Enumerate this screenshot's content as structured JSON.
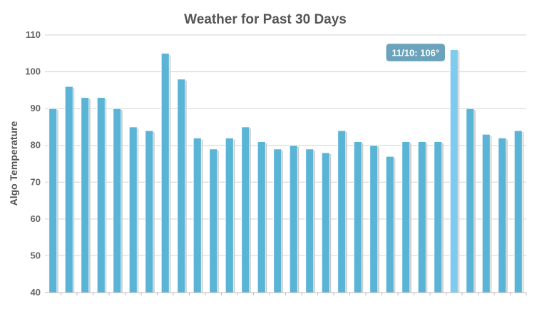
{
  "chart_data": {
    "type": "bar",
    "title": "Weather for Past 30 Days",
    "xlabel": "",
    "ylabel": "Algo Temperature",
    "ylim": [
      40,
      110
    ],
    "yticks": [
      40,
      50,
      60,
      70,
      80,
      90,
      100,
      110
    ],
    "grid": true,
    "values": [
      90,
      96,
      93,
      93,
      90,
      85,
      84,
      105,
      98,
      82,
      79,
      82,
      85,
      81,
      79,
      80,
      79,
      78,
      84,
      81,
      80,
      77,
      81,
      81,
      81,
      106,
      90,
      83,
      82,
      84
    ],
    "highlight_index": 25,
    "tooltip": "11/10: 106°"
  },
  "colors": {
    "bar": "#5ab4d6",
    "bar_highlight": "#7fcbee",
    "bar_shadow": "#c9c9c9",
    "grid": "#d4d4d4",
    "axis": "#bbbbbb",
    "tooltip_bg": "#6aa3bb",
    "tooltip_border": "#ffffff"
  }
}
